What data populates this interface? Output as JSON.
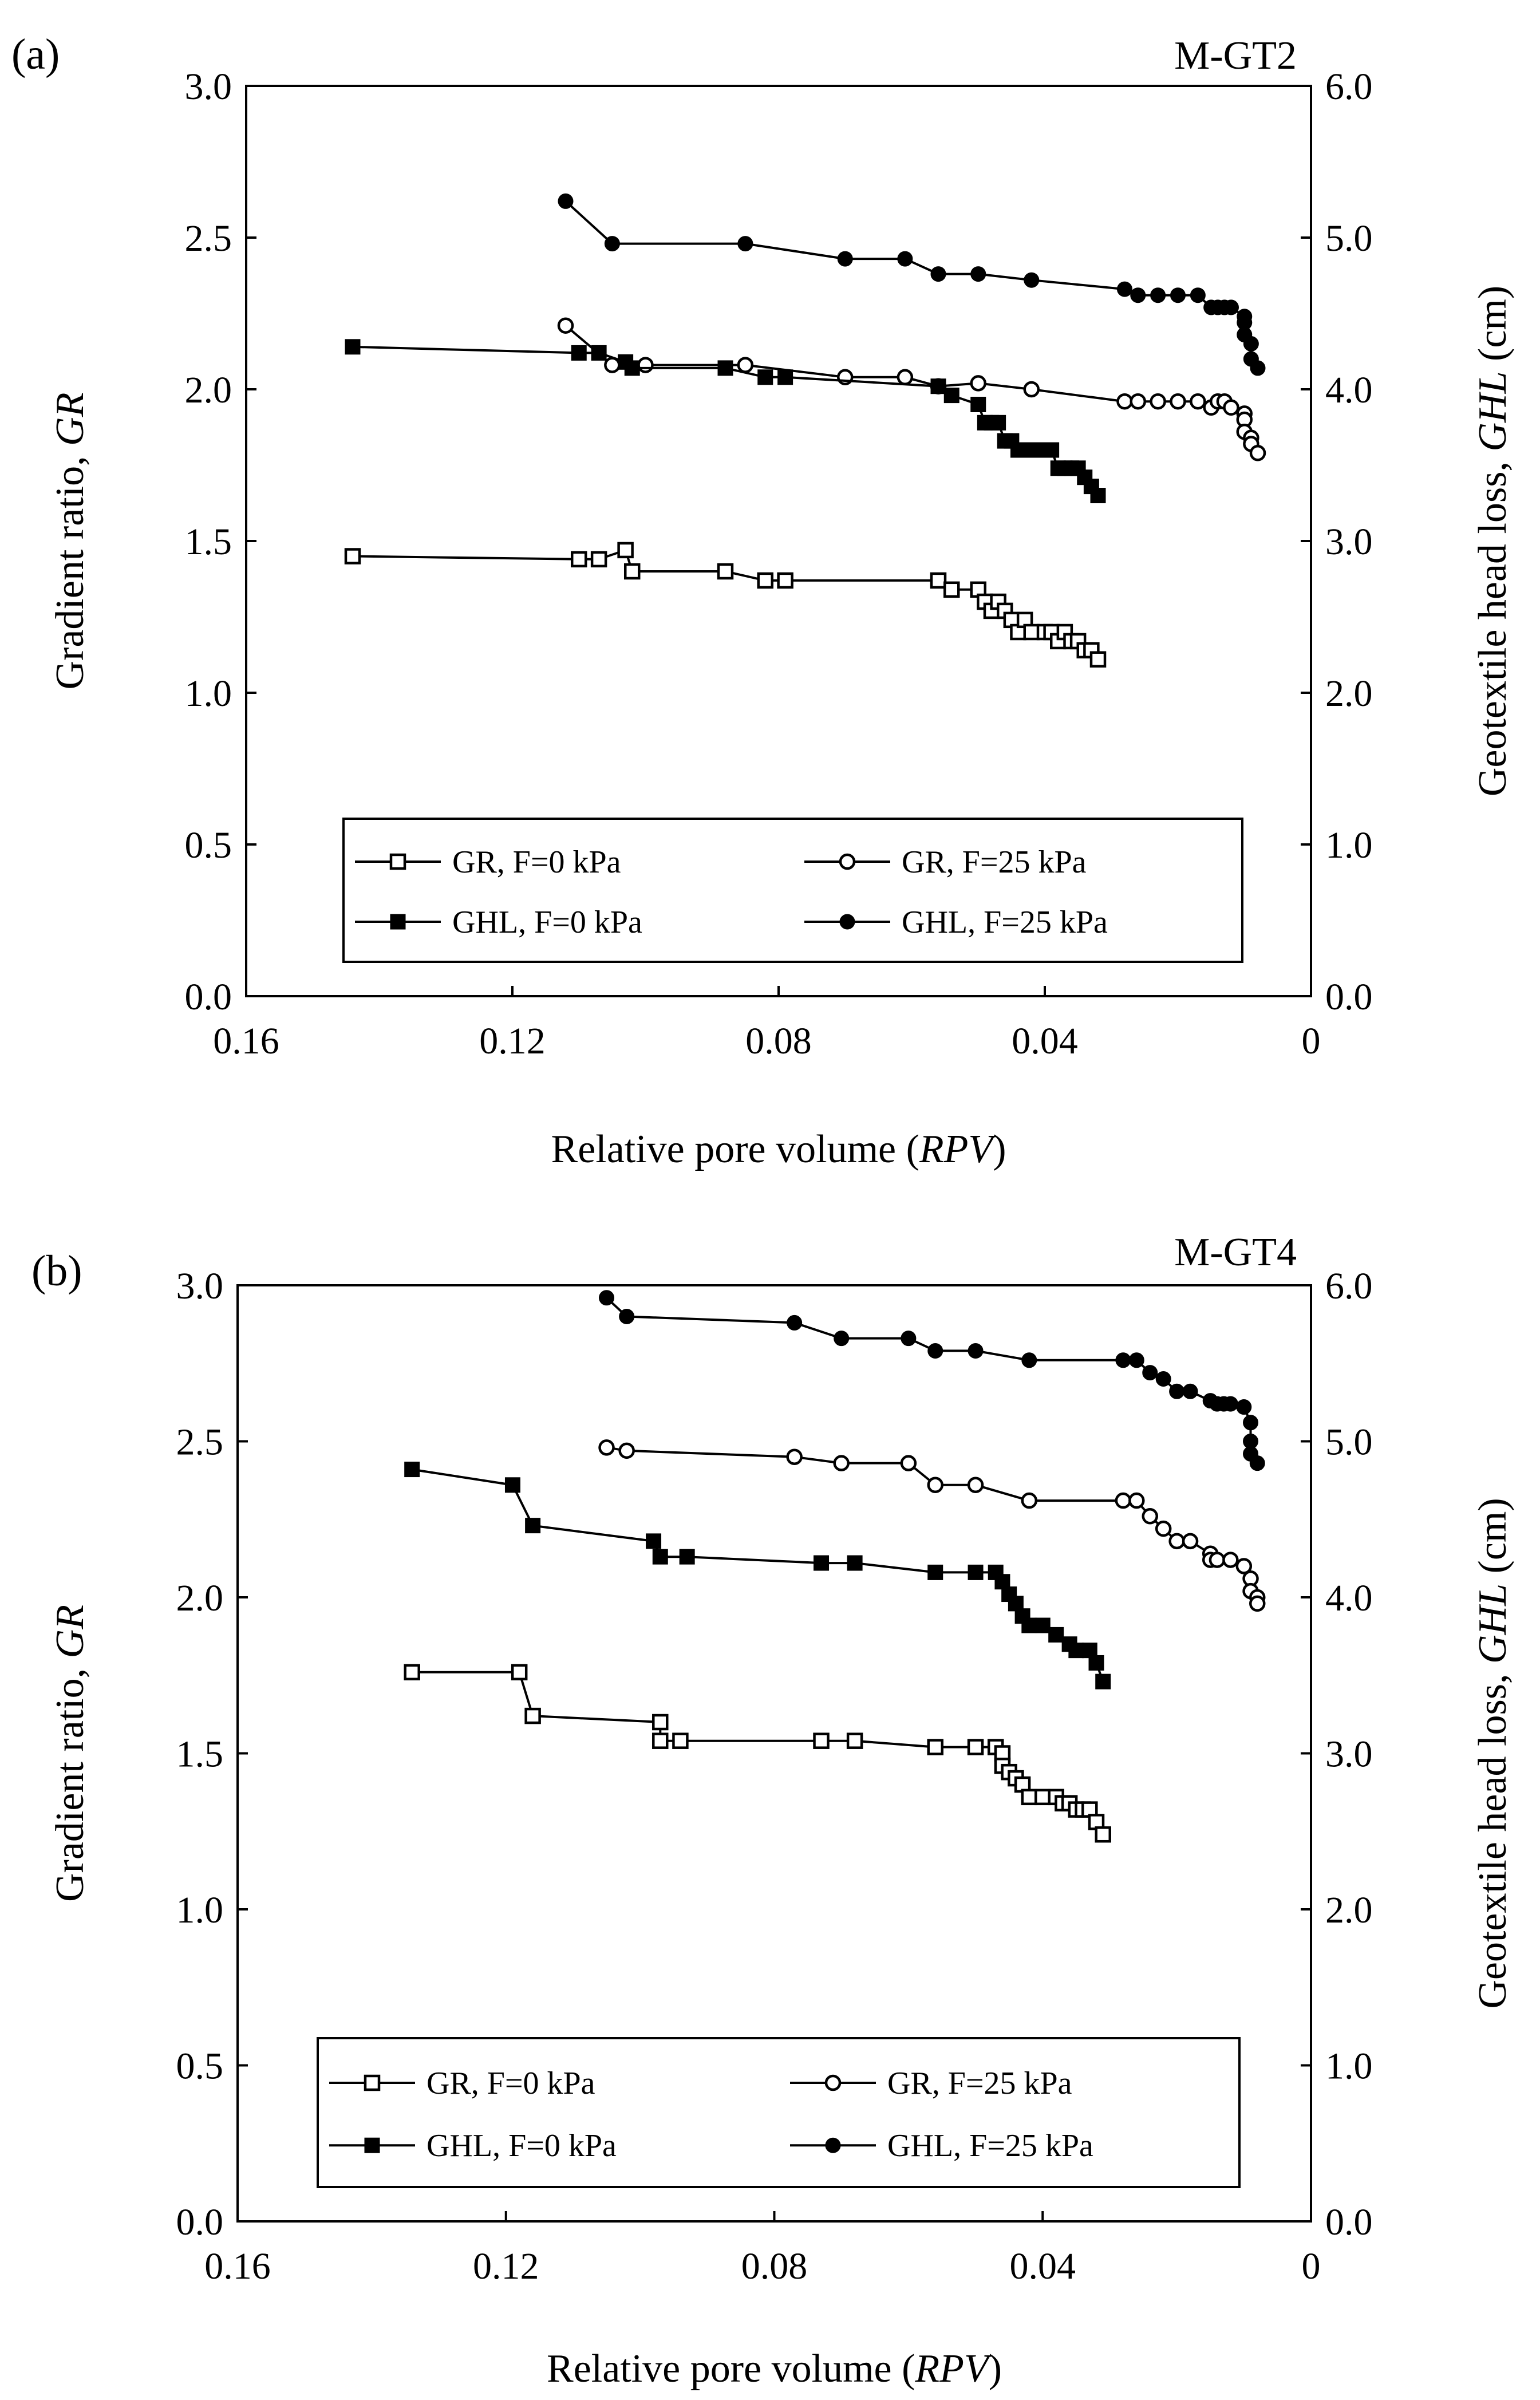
{
  "chart_data": [
    {
      "type": "line",
      "panel_label": "(a)",
      "title": "M-GT2",
      "xlabel": "Relative pore volume (RPV)",
      "xlabel_prefix": "Relative  pore volume (",
      "xlabel_italic": "RPV",
      "xlabel_suffix": ")",
      "ylabel": "Gradient ratio, GR",
      "ylabel_prefix": "Gradient ratio, ",
      "ylabel_italic": "GR",
      "y2label": "Geotextile head loss, GHL (cm)",
      "y2label_prefix": "Geotextile head loss, ",
      "y2label_italic": "GHL",
      "y2label_suffix": " (cm)",
      "xlim": [
        0.16,
        0
      ],
      "ylim": [
        0,
        3.0
      ],
      "y2lim": [
        0,
        6.0
      ],
      "xticks": [
        "0.16",
        "0.12",
        "0.08",
        "0.04",
        "0"
      ],
      "yticks": [
        "0.0",
        "0.5",
        "1.0",
        "1.5",
        "2.0",
        "2.5",
        "3.0"
      ],
      "y2ticks": [
        "0.0",
        "1.0",
        "2.0",
        "3.0",
        "4.0",
        "5.0",
        "6.0"
      ],
      "legend": [
        "GR, F=0 kPa",
        "GR, F=25 kPa",
        "GHL, F=0 kPa",
        "GHL, F=25 kPa"
      ],
      "series": [
        {
          "name": "GR, F=0 kPa",
          "axis": "left",
          "marker": "square-open",
          "x": [
            0.144,
            0.11,
            0.107,
            0.103,
            0.102,
            0.088,
            0.082,
            0.079,
            0.056,
            0.054,
            0.05,
            0.049,
            0.048,
            0.047,
            0.046,
            0.045,
            0.044,
            0.043,
            0.042,
            0.04,
            0.039,
            0.038,
            0.037,
            0.036,
            0.035,
            0.034,
            0.033,
            0.032
          ],
          "y": [
            1.45,
            1.44,
            1.44,
            1.47,
            1.4,
            1.4,
            1.37,
            1.37,
            1.37,
            1.34,
            1.34,
            1.3,
            1.27,
            1.3,
            1.27,
            1.24,
            1.2,
            1.24,
            1.2,
            1.2,
            1.2,
            1.17,
            1.2,
            1.17,
            1.17,
            1.14,
            1.14,
            1.11
          ]
        },
        {
          "name": "GR, F=25 kPa",
          "axis": "left",
          "marker": "circle-open",
          "x": [
            0.112,
            0.105,
            0.1,
            0.085,
            0.07,
            0.061,
            0.056,
            0.05,
            0.042,
            0.028,
            0.026,
            0.023,
            0.02,
            0.017,
            0.015,
            0.014,
            0.013,
            0.012,
            0.01,
            0.01,
            0.01,
            0.009,
            0.009,
            0.008
          ],
          "y": [
            2.21,
            2.08,
            2.08,
            2.08,
            2.04,
            2.04,
            2.01,
            2.02,
            2.0,
            1.96,
            1.96,
            1.96,
            1.96,
            1.96,
            1.94,
            1.96,
            1.96,
            1.94,
            1.92,
            1.9,
            1.86,
            1.84,
            1.82,
            1.79
          ]
        },
        {
          "name": "GHL, F=0 kPa",
          "axis": "right",
          "marker": "square-filled",
          "x": [
            0.144,
            0.11,
            0.107,
            0.103,
            0.102,
            0.088,
            0.082,
            0.079,
            0.056,
            0.054,
            0.05,
            0.049,
            0.048,
            0.047,
            0.046,
            0.045,
            0.044,
            0.043,
            0.042,
            0.04,
            0.039,
            0.038,
            0.037,
            0.036,
            0.035,
            0.034,
            0.033,
            0.032
          ],
          "y": [
            4.28,
            4.24,
            4.24,
            4.18,
            4.14,
            4.14,
            4.08,
            4.08,
            4.02,
            3.96,
            3.9,
            3.78,
            3.78,
            3.78,
            3.66,
            3.66,
            3.6,
            3.6,
            3.6,
            3.6,
            3.6,
            3.48,
            3.48,
            3.48,
            3.48,
            3.42,
            3.36,
            3.3
          ]
        },
        {
          "name": "GHL, F=25 kPa",
          "axis": "right",
          "marker": "circle-filled",
          "x": [
            0.112,
            0.105,
            0.085,
            0.07,
            0.061,
            0.056,
            0.05,
            0.042,
            0.028,
            0.026,
            0.023,
            0.02,
            0.017,
            0.015,
            0.014,
            0.013,
            0.012,
            0.01,
            0.01,
            0.01,
            0.009,
            0.009,
            0.008
          ],
          "y": [
            5.24,
            4.96,
            4.96,
            4.86,
            4.86,
            4.76,
            4.76,
            4.72,
            4.66,
            4.62,
            4.62,
            4.62,
            4.62,
            4.54,
            4.54,
            4.54,
            4.54,
            4.48,
            4.44,
            4.36,
            4.3,
            4.2,
            4.14
          ]
        }
      ]
    },
    {
      "type": "line",
      "panel_label": "(b)",
      "title": "M-GT4",
      "xlabel": "Relative pore volume (RPV)",
      "xlabel_prefix": "Relative pore volume (",
      "xlabel_italic": "RPV",
      "xlabel_suffix": ")",
      "ylabel": "Gradient ratio, GR",
      "ylabel_prefix": "Gradient ratio, ",
      "ylabel_italic": "GR",
      "y2label": "Geotextile head loss, GHL (cm)",
      "y2label_prefix": "Geotextile head loss, ",
      "y2label_italic": "GHL",
      "y2label_suffix": " (cm)",
      "xlim": [
        0.16,
        0
      ],
      "ylim": [
        0,
        3.0
      ],
      "y2lim": [
        0,
        6.0
      ],
      "xticks": [
        "0.16",
        "0.12",
        "0.08",
        "0.04",
        "0"
      ],
      "yticks": [
        "0.0",
        "0.5",
        "1.0",
        "1.5",
        "2.0",
        "2.5",
        "3.0"
      ],
      "y2ticks": [
        "0.0",
        "1.0",
        "2.0",
        "3.0",
        "4.0",
        "5.0",
        "6.0"
      ],
      "legend": [
        "GR, F=0 kPa",
        "GR, F=25 kPa",
        "GHL, F=0 kPa",
        "GHL, F=25 kPa"
      ],
      "series": [
        {
          "name": "GR, F=0 kPa",
          "axis": "left",
          "marker": "square-open",
          "x": [
            0.134,
            0.118,
            0.116,
            0.097,
            0.097,
            0.094,
            0.073,
            0.068,
            0.056,
            0.05,
            0.047,
            0.046,
            0.046,
            0.045,
            0.044,
            0.043,
            0.042,
            0.04,
            0.038,
            0.037,
            0.036,
            0.035,
            0.034,
            0.033,
            0.032,
            0.031
          ],
          "y": [
            1.76,
            1.76,
            1.62,
            1.6,
            1.54,
            1.54,
            1.54,
            1.54,
            1.52,
            1.52,
            1.52,
            1.5,
            1.46,
            1.44,
            1.42,
            1.4,
            1.36,
            1.36,
            1.36,
            1.34,
            1.34,
            1.32,
            1.32,
            1.32,
            1.28,
            1.24
          ]
        },
        {
          "name": "GR, F=25 kPa",
          "axis": "left",
          "marker": "circle-open",
          "x": [
            0.105,
            0.102,
            0.077,
            0.07,
            0.06,
            0.056,
            0.05,
            0.042,
            0.028,
            0.026,
            0.024,
            0.022,
            0.02,
            0.018,
            0.015,
            0.015,
            0.014,
            0.012,
            0.01,
            0.009,
            0.009,
            0.008,
            0.008
          ],
          "y": [
            2.48,
            2.47,
            2.45,
            2.43,
            2.43,
            2.36,
            2.36,
            2.31,
            2.31,
            2.31,
            2.26,
            2.22,
            2.18,
            2.18,
            2.14,
            2.12,
            2.12,
            2.12,
            2.1,
            2.06,
            2.02,
            2.0,
            1.98
          ]
        },
        {
          "name": "GHL, F=0 kPa",
          "axis": "right",
          "marker": "square-filled",
          "x": [
            0.134,
            0.119,
            0.116,
            0.098,
            0.097,
            0.093,
            0.073,
            0.068,
            0.056,
            0.05,
            0.047,
            0.046,
            0.045,
            0.044,
            0.043,
            0.042,
            0.04,
            0.038,
            0.036,
            0.035,
            0.033,
            0.032,
            0.031
          ],
          "y": [
            4.82,
            4.72,
            4.46,
            4.36,
            4.26,
            4.26,
            4.22,
            4.22,
            4.16,
            4.16,
            4.16,
            4.1,
            4.02,
            3.96,
            3.88,
            3.82,
            3.82,
            3.76,
            3.7,
            3.66,
            3.66,
            3.58,
            3.46
          ]
        },
        {
          "name": "GHL, F=25 kPa",
          "axis": "right",
          "marker": "circle-filled",
          "x": [
            0.105,
            0.102,
            0.077,
            0.07,
            0.06,
            0.056,
            0.05,
            0.042,
            0.028,
            0.026,
            0.024,
            0.022,
            0.02,
            0.018,
            0.015,
            0.014,
            0.013,
            0.012,
            0.01,
            0.009,
            0.009,
            0.009,
            0.008
          ],
          "y": [
            5.92,
            5.8,
            5.76,
            5.66,
            5.66,
            5.58,
            5.58,
            5.52,
            5.52,
            5.52,
            5.44,
            5.4,
            5.32,
            5.32,
            5.26,
            5.24,
            5.24,
            5.24,
            5.22,
            5.12,
            5.0,
            4.92,
            4.86
          ]
        }
      ]
    }
  ]
}
